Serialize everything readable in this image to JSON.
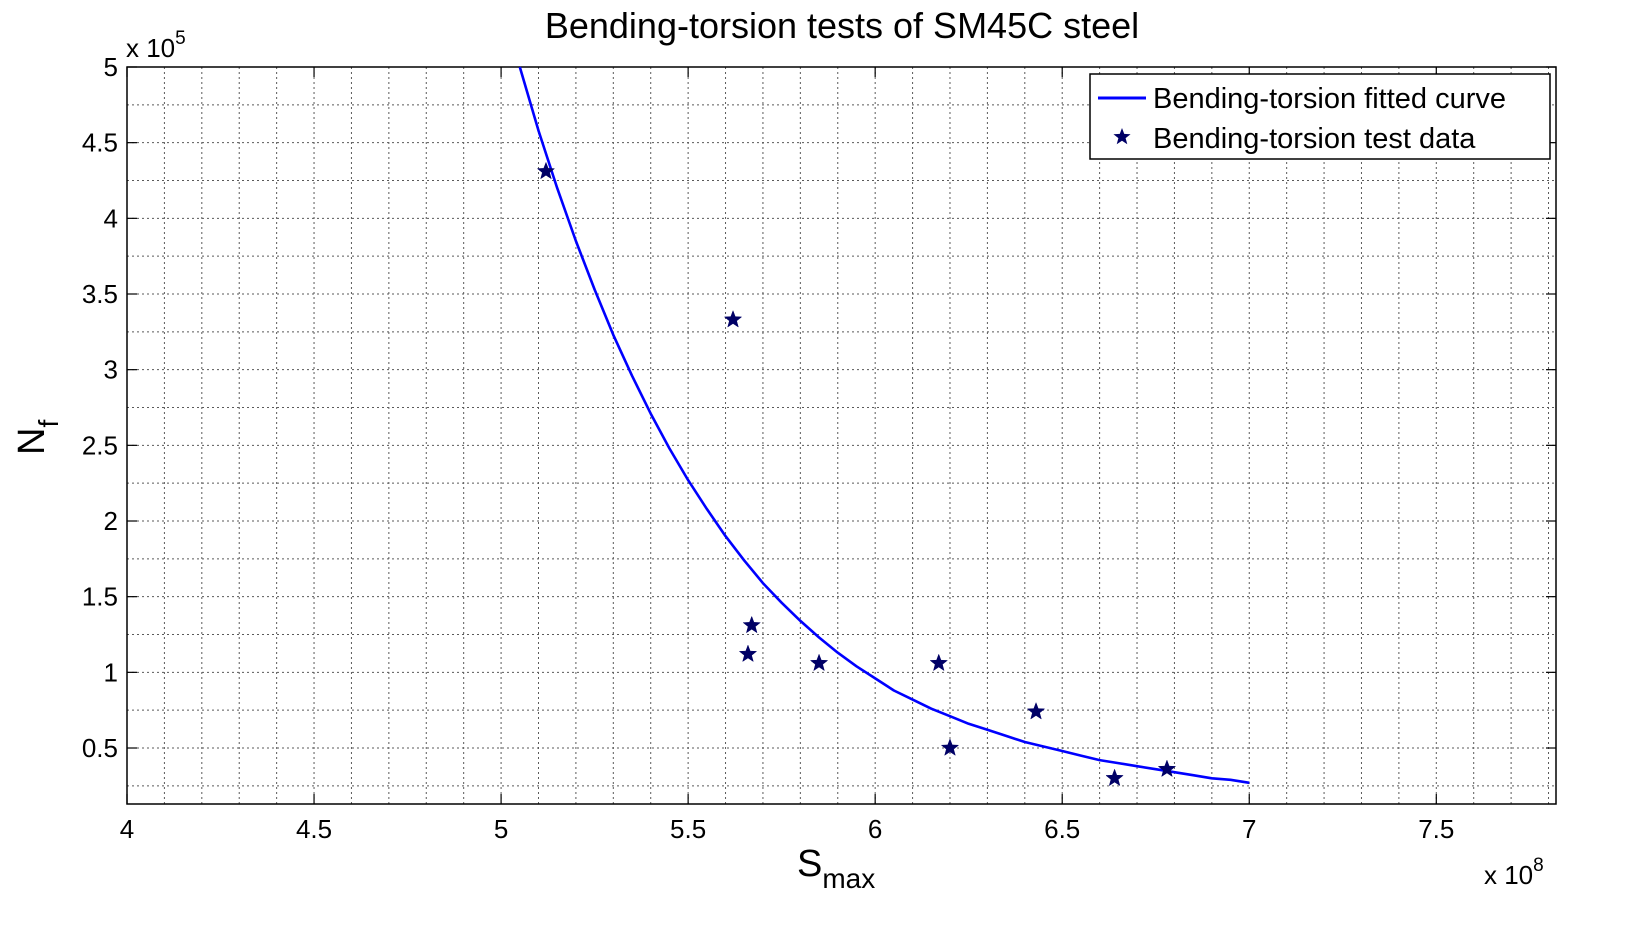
{
  "chart_data": {
    "type": "scatter",
    "title": "Bending-torsion tests of SM45C steel",
    "xlabel": {
      "main": "S",
      "sub": "max"
    },
    "ylabel": {
      "main": "N",
      "sub": "f"
    },
    "x_multiplier": {
      "base": "x 10",
      "exponent": "8"
    },
    "y_multiplier": {
      "base": "x 10",
      "exponent": "5"
    },
    "xlim": [
      4.0,
      7.82
    ],
    "ylim": [
      0.13,
      5.0
    ],
    "x_ticks": [
      4,
      4.5,
      5,
      5.5,
      6,
      6.5,
      7,
      7.5
    ],
    "x_tick_labels": [
      "4",
      "4.5",
      "5",
      "5.5",
      "6",
      "6.5",
      "7",
      "7.5"
    ],
    "y_ticks": [
      0.5,
      1,
      1.5,
      2,
      2.5,
      3,
      3.5,
      4,
      4.5,
      5
    ],
    "y_tick_labels": [
      "0.5",
      "1",
      "1.5",
      "2",
      "2.5",
      "3",
      "3.5",
      "4",
      "4.5",
      "5"
    ],
    "grid": true,
    "legend_position": "top-right",
    "series": [
      {
        "name": "Bending-torsion fitted curve",
        "kind": "line",
        "color": "#0000ff",
        "x": [
          5.05,
          5.1,
          5.15,
          5.2,
          5.25,
          5.3,
          5.35,
          5.4,
          5.45,
          5.5,
          5.55,
          5.6,
          5.65,
          5.7,
          5.75,
          5.8,
          5.85,
          5.9,
          5.95,
          6.0,
          6.05,
          6.1,
          6.15,
          6.2,
          6.25,
          6.3,
          6.35,
          6.4,
          6.45,
          6.5,
          6.55,
          6.6,
          6.65,
          6.7,
          6.75,
          6.8,
          6.85,
          6.9,
          6.95,
          7.0
        ],
        "y": [
          5.0,
          4.58,
          4.2,
          3.85,
          3.53,
          3.23,
          2.96,
          2.71,
          2.48,
          2.27,
          2.08,
          1.9,
          1.74,
          1.59,
          1.46,
          1.34,
          1.23,
          1.13,
          1.04,
          0.96,
          0.88,
          0.82,
          0.76,
          0.71,
          0.66,
          0.62,
          0.58,
          0.54,
          0.51,
          0.48,
          0.45,
          0.42,
          0.4,
          0.38,
          0.36,
          0.34,
          0.32,
          0.3,
          0.29,
          0.27
        ]
      },
      {
        "name": "Bending-torsion test data",
        "kind": "scatter",
        "color": "#000066",
        "x": [
          5.12,
          5.62,
          5.66,
          5.67,
          5.85,
          6.17,
          6.2,
          6.43,
          6.64,
          6.78
        ],
        "y": [
          4.31,
          3.33,
          1.12,
          1.31,
          1.06,
          1.06,
          0.5,
          0.74,
          0.3,
          0.36
        ]
      }
    ]
  }
}
